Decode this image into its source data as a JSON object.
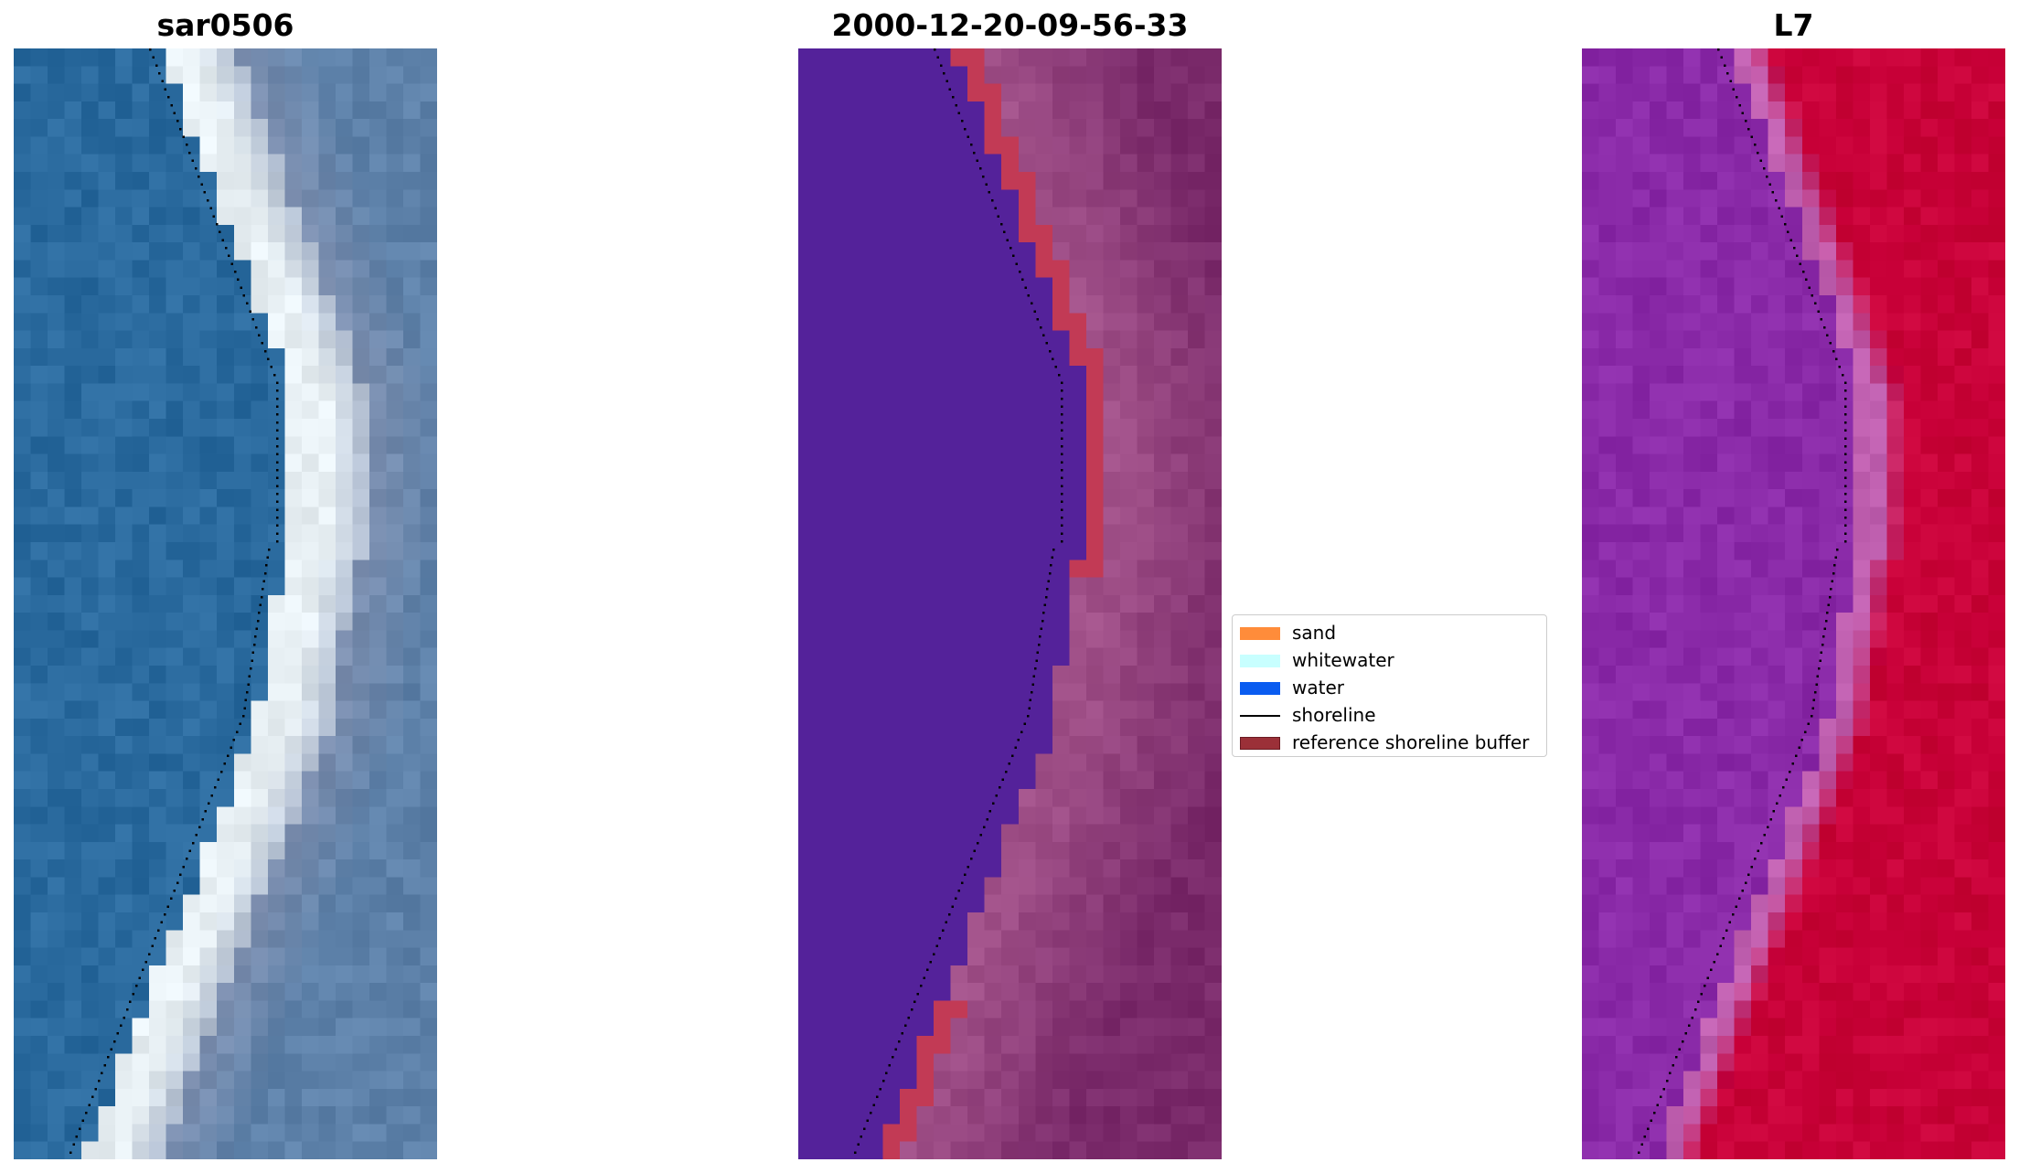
{
  "panels": [
    {
      "title": "sar0506",
      "kind": "rgb"
    },
    {
      "title": "2000-12-20-09-56-33",
      "kind": "classified"
    },
    {
      "title": "L7",
      "kind": "index"
    }
  ],
  "legend": {
    "items": [
      {
        "label": "sand",
        "color": "#ff8c3a",
        "type": "patch"
      },
      {
        "label": "whitewater",
        "color": "#c8ffff",
        "type": "patch"
      },
      {
        "label": "water",
        "color": "#0a5cf0",
        "type": "patch"
      },
      {
        "label": "shoreline",
        "color": "#000000",
        "type": "line"
      },
      {
        "label": "reference shoreline buffer",
        "color": "#9b3038",
        "type": "patch"
      }
    ]
  },
  "colors": {
    "rgb_water": "#2a6a9e",
    "rgb_whitewater": "#e8f0f4",
    "rgb_land": "#7f90b0",
    "class_water": "#54229a",
    "class_buffer": "#c23a55",
    "class_land": "#a05088",
    "index_low": "#8a2aa8",
    "index_high": "#c80038"
  }
}
